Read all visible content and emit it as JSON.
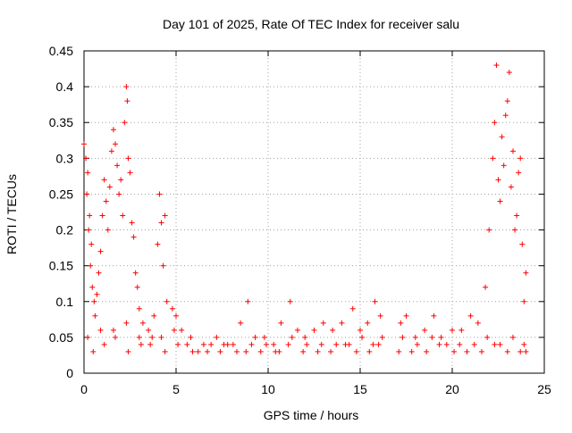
{
  "chart_data": {
    "type": "scatter",
    "title": "Day 101 of 2025, Rate Of TEC Index for receiver salu",
    "xlabel": "GPS time / hours",
    "ylabel": "ROTI / TECUs",
    "xlim": [
      0,
      25
    ],
    "ylim": [
      0,
      0.45
    ],
    "xticks": [
      0,
      5,
      10,
      15,
      20,
      25
    ],
    "yticks": [
      0,
      0.05,
      0.1,
      0.15,
      0.2,
      0.25,
      0.3,
      0.35,
      0.4,
      0.45
    ],
    "xtick_labels": [
      "0",
      "5",
      "10",
      "15",
      "20",
      "25"
    ],
    "ytick_labels": [
      "0",
      "0.05",
      "0.1",
      "0.15",
      "0.2",
      "0.25",
      "0.3",
      "0.35",
      "0.4",
      "0.45"
    ],
    "grid": true,
    "marker": "+",
    "color": "#ff0000",
    "series": [
      {
        "points": [
          [
            0.0,
            0.32
          ],
          [
            0.1,
            0.3
          ],
          [
            0.2,
            0.28
          ],
          [
            0.3,
            0.22
          ],
          [
            0.4,
            0.18
          ],
          [
            0.15,
            0.25
          ],
          [
            0.25,
            0.2
          ],
          [
            0.35,
            0.15
          ],
          [
            0.45,
            0.12
          ],
          [
            0.55,
            0.1
          ],
          [
            0.6,
            0.08
          ],
          [
            0.7,
            0.11
          ],
          [
            0.8,
            0.14
          ],
          [
            0.9,
            0.17
          ],
          [
            1.0,
            0.22
          ],
          [
            1.1,
            0.27
          ],
          [
            1.2,
            0.24
          ],
          [
            1.3,
            0.2
          ],
          [
            1.4,
            0.26
          ],
          [
            1.5,
            0.31
          ],
          [
            1.6,
            0.34
          ],
          [
            1.7,
            0.32
          ],
          [
            1.8,
            0.29
          ],
          [
            1.9,
            0.25
          ],
          [
            2.0,
            0.27
          ],
          [
            2.1,
            0.22
          ],
          [
            2.2,
            0.35
          ],
          [
            2.3,
            0.4
          ],
          [
            2.35,
            0.38
          ],
          [
            2.4,
            0.3
          ],
          [
            2.5,
            0.28
          ],
          [
            2.6,
            0.21
          ],
          [
            2.7,
            0.19
          ],
          [
            2.8,
            0.14
          ],
          [
            2.9,
            0.12
          ],
          [
            3.0,
            0.09
          ],
          [
            3.2,
            0.07
          ],
          [
            3.5,
            0.06
          ],
          [
            3.8,
            0.08
          ],
          [
            4.0,
            0.18
          ],
          [
            4.1,
            0.25
          ],
          [
            4.2,
            0.21
          ],
          [
            4.3,
            0.15
          ],
          [
            4.4,
            0.22
          ],
          [
            4.5,
            0.1
          ],
          [
            4.8,
            0.09
          ],
          [
            5.0,
            0.08
          ],
          [
            5.3,
            0.06
          ],
          [
            5.8,
            0.05
          ],
          [
            6.5,
            0.04
          ],
          [
            7.2,
            0.05
          ],
          [
            7.8,
            0.04
          ],
          [
            8.5,
            0.07
          ],
          [
            8.9,
            0.1
          ],
          [
            9.3,
            0.05
          ],
          [
            9.8,
            0.05
          ],
          [
            10.3,
            0.04
          ],
          [
            10.7,
            0.07
          ],
          [
            11.2,
            0.1
          ],
          [
            11.6,
            0.06
          ],
          [
            12.0,
            0.05
          ],
          [
            12.5,
            0.06
          ],
          [
            13.0,
            0.07
          ],
          [
            13.5,
            0.06
          ],
          [
            14.0,
            0.07
          ],
          [
            14.6,
            0.09
          ],
          [
            15.0,
            0.06
          ],
          [
            15.4,
            0.07
          ],
          [
            15.8,
            0.1
          ],
          [
            16.1,
            0.08
          ],
          [
            17.2,
            0.07
          ],
          [
            17.5,
            0.08
          ],
          [
            18.0,
            0.05
          ],
          [
            18.5,
            0.06
          ],
          [
            19.0,
            0.08
          ],
          [
            19.4,
            0.05
          ],
          [
            20.0,
            0.06
          ],
          [
            20.5,
            0.06
          ],
          [
            21.0,
            0.08
          ],
          [
            21.4,
            0.07
          ],
          [
            21.8,
            0.12
          ],
          [
            22.0,
            0.2
          ],
          [
            22.2,
            0.3
          ],
          [
            22.3,
            0.35
          ],
          [
            22.4,
            0.43
          ],
          [
            22.5,
            0.27
          ],
          [
            22.6,
            0.24
          ],
          [
            22.7,
            0.33
          ],
          [
            22.8,
            0.29
          ],
          [
            22.9,
            0.36
          ],
          [
            23.0,
            0.38
          ],
          [
            23.1,
            0.42
          ],
          [
            23.2,
            0.26
          ],
          [
            23.3,
            0.31
          ],
          [
            23.4,
            0.2
          ],
          [
            23.5,
            0.22
          ],
          [
            23.6,
            0.28
          ],
          [
            23.7,
            0.3
          ],
          [
            23.8,
            0.18
          ],
          [
            23.9,
            0.1
          ],
          [
            24.0,
            0.14
          ],
          [
            0.5,
            0.03
          ],
          [
            1.1,
            0.04
          ],
          [
            1.7,
            0.05
          ],
          [
            2.4,
            0.03
          ],
          [
            3.1,
            0.04
          ],
          [
            3.7,
            0.05
          ],
          [
            4.4,
            0.03
          ],
          [
            5.1,
            0.04
          ],
          [
            5.9,
            0.03
          ],
          [
            6.7,
            0.03
          ],
          [
            7.4,
            0.03
          ],
          [
            8.1,
            0.04
          ],
          [
            8.8,
            0.03
          ],
          [
            9.6,
            0.03
          ],
          [
            10.4,
            0.03
          ],
          [
            11.1,
            0.04
          ],
          [
            11.9,
            0.03
          ],
          [
            12.7,
            0.03
          ],
          [
            13.4,
            0.03
          ],
          [
            14.2,
            0.04
          ],
          [
            14.8,
            0.03
          ],
          [
            15.5,
            0.03
          ],
          [
            16.0,
            0.04
          ],
          [
            17.1,
            0.03
          ],
          [
            17.8,
            0.03
          ],
          [
            18.6,
            0.03
          ],
          [
            19.3,
            0.04
          ],
          [
            20.1,
            0.03
          ],
          [
            20.8,
            0.03
          ],
          [
            21.6,
            0.03
          ],
          [
            22.3,
            0.04
          ],
          [
            23.0,
            0.03
          ],
          [
            23.7,
            0.03
          ],
          [
            24.0,
            0.03
          ],
          [
            0.2,
            0.05
          ],
          [
            0.9,
            0.06
          ],
          [
            1.6,
            0.06
          ],
          [
            2.3,
            0.07
          ],
          [
            3.0,
            0.05
          ],
          [
            3.6,
            0.04
          ],
          [
            4.2,
            0.05
          ],
          [
            4.9,
            0.06
          ],
          [
            5.6,
            0.04
          ],
          [
            6.2,
            0.03
          ],
          [
            6.9,
            0.04
          ],
          [
            7.6,
            0.04
          ],
          [
            8.3,
            0.03
          ],
          [
            9.1,
            0.04
          ],
          [
            9.9,
            0.04
          ],
          [
            10.6,
            0.03
          ],
          [
            11.3,
            0.05
          ],
          [
            12.1,
            0.04
          ],
          [
            12.9,
            0.04
          ],
          [
            13.7,
            0.04
          ],
          [
            14.4,
            0.04
          ],
          [
            15.1,
            0.05
          ],
          [
            15.7,
            0.04
          ],
          [
            16.2,
            0.05
          ],
          [
            17.3,
            0.05
          ],
          [
            18.1,
            0.04
          ],
          [
            18.9,
            0.05
          ],
          [
            19.7,
            0.04
          ],
          [
            20.4,
            0.04
          ],
          [
            21.2,
            0.04
          ],
          [
            21.9,
            0.05
          ],
          [
            22.6,
            0.04
          ],
          [
            23.3,
            0.05
          ],
          [
            23.9,
            0.04
          ]
        ]
      }
    ]
  }
}
